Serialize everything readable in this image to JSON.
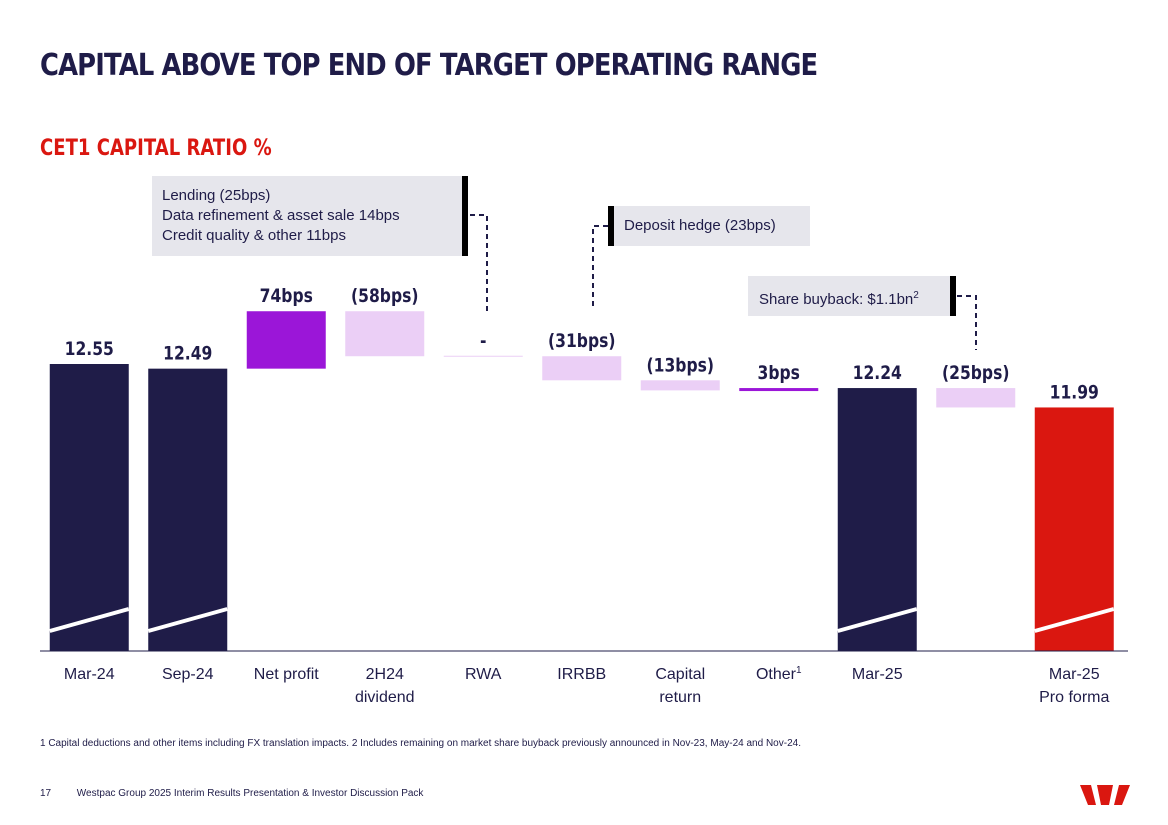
{
  "page": {
    "title": "CAPITAL ABOVE TOP END OF TARGET OPERATING RANGE",
    "subtitle": "CET1 CAPITAL RATIO %",
    "footnote": "1 Capital deductions and other items including FX translation impacts. 2 Includes remaining on market share buyback previously announced in Nov-23, May-24 and Nov-24.",
    "page_number": "17",
    "footer_text": "Westpac Group 2025 Interim Results Presentation & Investor Discussion Pack",
    "callouts": {
      "lending": [
        "Lending (25bps)",
        "Data refinement & asset sale 14bps",
        "Credit quality & other 11bps"
      ],
      "deposit": "Deposit hedge (23bps)",
      "buyback_text": "Share buyback:  $1.1bn",
      "buyback_sup": "2"
    },
    "colors": {
      "navy": "#1f1c48",
      "purple": "#9b16d8",
      "lilac": "#ebcff6",
      "red": "#da1710"
    }
  },
  "chart_data": {
    "type": "bar",
    "subtype": "waterfall",
    "title": "CET1 CAPITAL RATIO %",
    "unit": "%",
    "categories": [
      {
        "line1": "Mar-24",
        "line2": "",
        "sup": ""
      },
      {
        "line1": "Sep-24",
        "line2": "",
        "sup": ""
      },
      {
        "line1": "Net profit",
        "line2": "",
        "sup": ""
      },
      {
        "line1": "2H24",
        "line2": "dividend",
        "sup": ""
      },
      {
        "line1": "RWA",
        "line2": "",
        "sup": ""
      },
      {
        "line1": "IRRBB",
        "line2": "",
        "sup": ""
      },
      {
        "line1": "Capital",
        "line2": "return",
        "sup": ""
      },
      {
        "line1": "Other",
        "line2": "",
        "sup": "1"
      },
      {
        "line1": "Mar-25",
        "line2": "",
        "sup": ""
      },
      {
        "line1": "",
        "line2": "",
        "sup": ""
      },
      {
        "line1": "Mar-25",
        "line2": "Pro forma",
        "sup": ""
      }
    ],
    "bars": [
      {
        "kind": "total",
        "value": 12.55,
        "label": "12.55",
        "color": "#1f1c48"
      },
      {
        "kind": "total",
        "value": 12.49,
        "label": "12.49",
        "color": "#1f1c48"
      },
      {
        "kind": "delta",
        "value": 0.74,
        "label": "74bps",
        "color": "#9b16d8"
      },
      {
        "kind": "delta",
        "value": -0.58,
        "label": "(58bps)",
        "color": "#ebcff6"
      },
      {
        "kind": "delta",
        "value": 0,
        "label": "-",
        "color": "#ebcff6"
      },
      {
        "kind": "delta",
        "value": -0.31,
        "label": "(31bps)",
        "color": "#ebcff6"
      },
      {
        "kind": "delta",
        "value": -0.13,
        "label": "(13bps)",
        "color": "#ebcff6"
      },
      {
        "kind": "delta",
        "value": 0.03,
        "label": "3bps",
        "color": "#9b16d8"
      },
      {
        "kind": "total",
        "value": 12.24,
        "label": "12.24",
        "color": "#1f1c48"
      },
      {
        "kind": "delta",
        "value": -0.25,
        "label": "(25bps)",
        "color": "#ebcff6"
      },
      {
        "kind": "total",
        "value": 11.99,
        "label": "11.99",
        "color": "#da1710"
      }
    ],
    "axis_break": true,
    "xlabel": "",
    "ylabel": ""
  }
}
